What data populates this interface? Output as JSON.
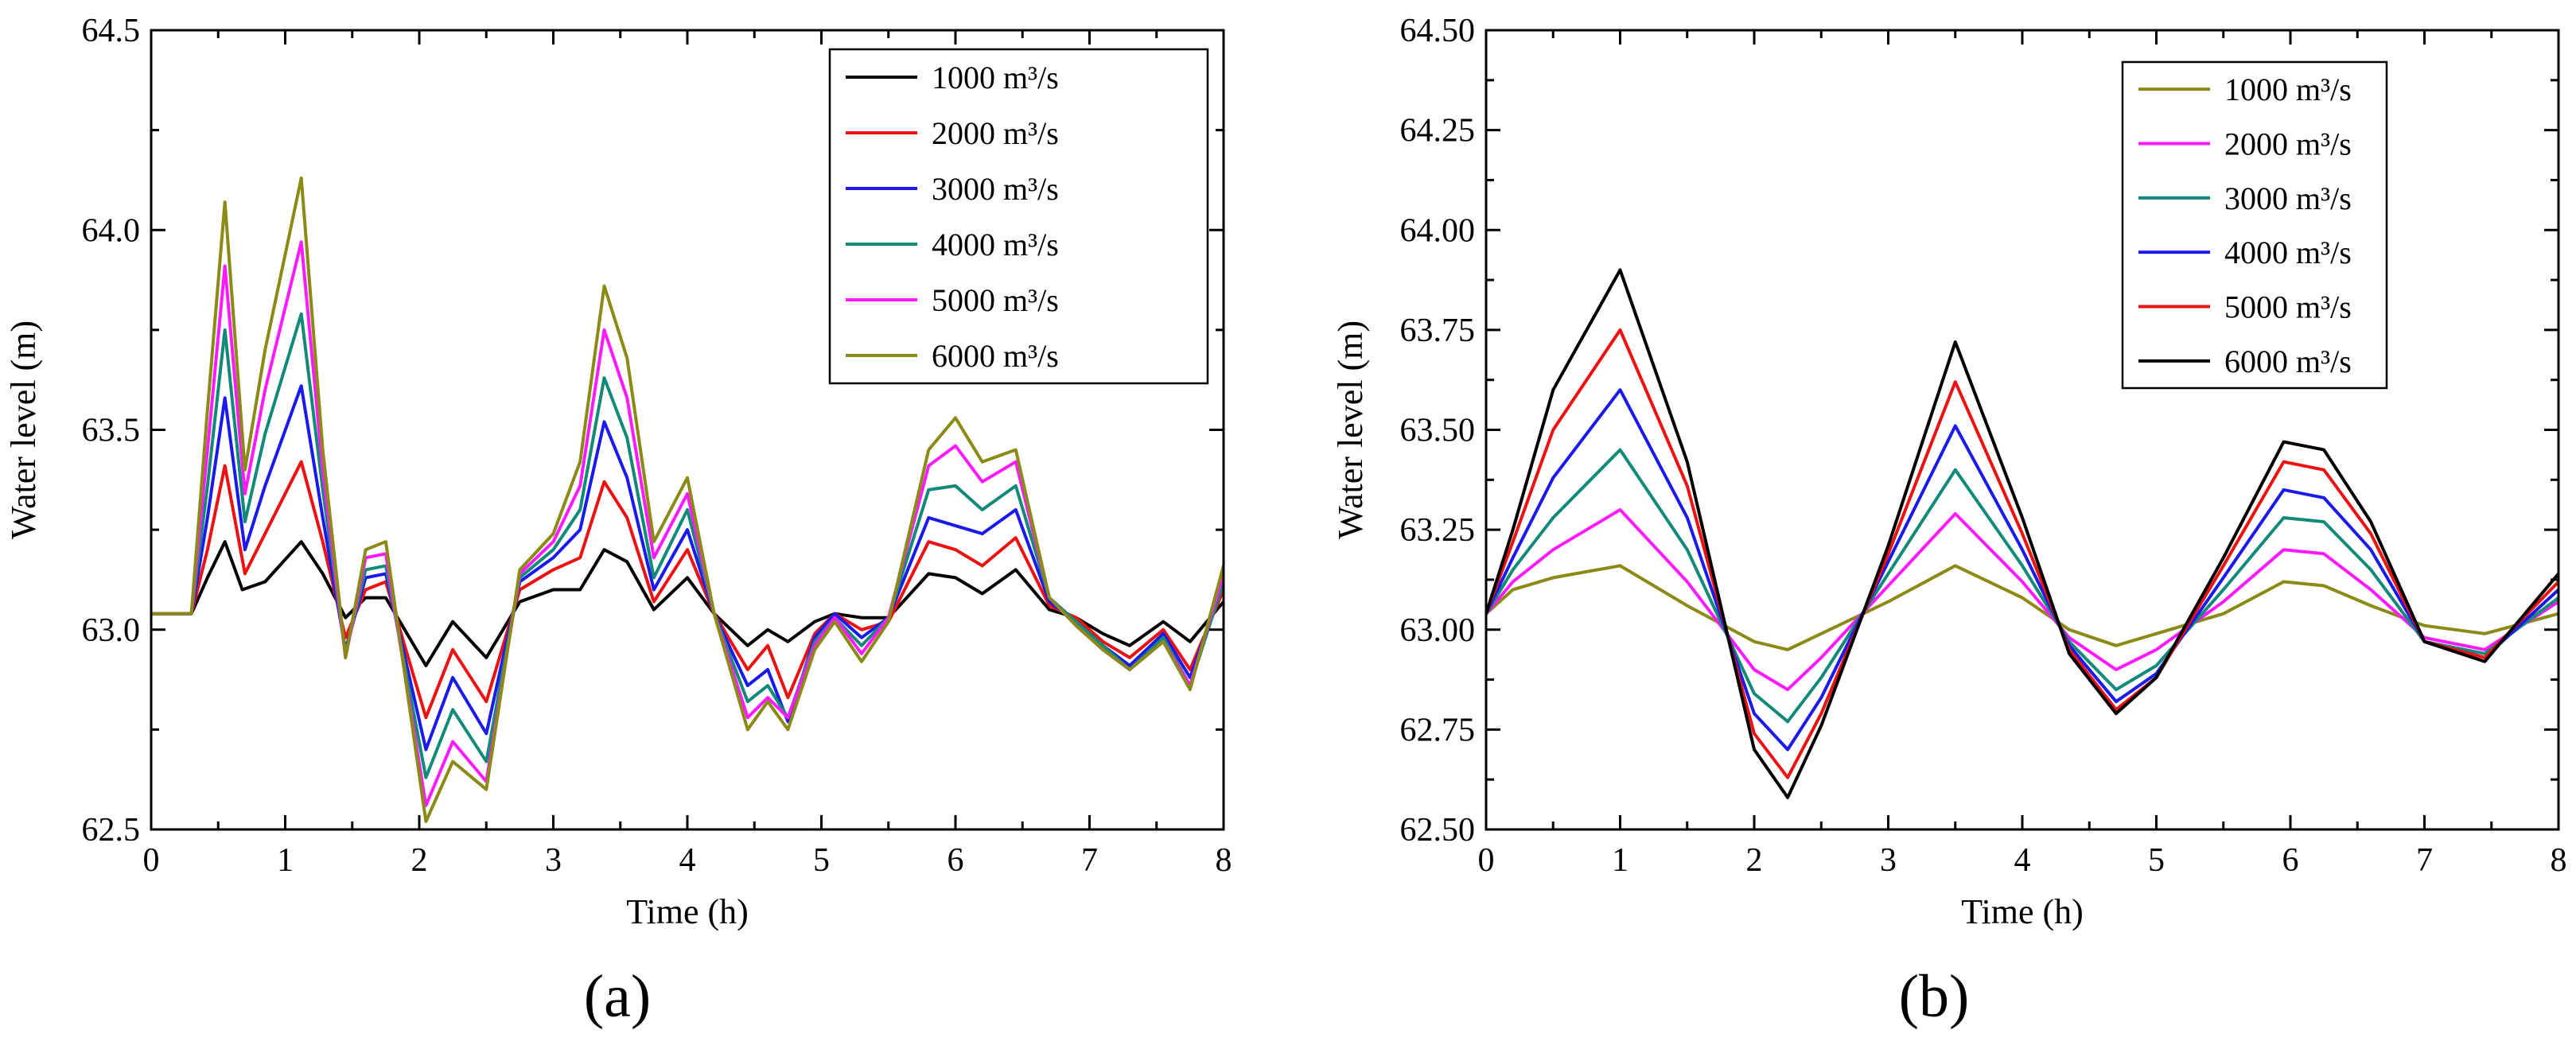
{
  "chart_data": [
    {
      "type": "line",
      "panel_label": "(a)",
      "xlabel": "Time (h)",
      "ylabel": "Water level (m)",
      "xlim": [
        0,
        8
      ],
      "ylim": [
        62.5,
        64.5
      ],
      "xticks": [
        0,
        1,
        2,
        3,
        4,
        5,
        6,
        7,
        8
      ],
      "xtick_labels": [
        "0",
        "1",
        "2",
        "3",
        "4",
        "5",
        "6",
        "7",
        "8"
      ],
      "yticks": [
        62.5,
        63.0,
        63.5,
        64.0,
        64.5
      ],
      "ytick_labels": [
        "62.5",
        "63.0",
        "63.5",
        "64.0",
        "64.5"
      ],
      "legend_position": "top-right",
      "series": [
        {
          "name": "1000 m³/s",
          "color": "#000000",
          "x": [
            0,
            0.3,
            0.42,
            0.55,
            0.68,
            0.85,
            1.12,
            1.28,
            1.45,
            1.6,
            1.75,
            2.05,
            2.25,
            2.5,
            2.75,
            3.0,
            3.2,
            3.38,
            3.55,
            3.75,
            4.0,
            4.2,
            4.45,
            4.6,
            4.75,
            4.95,
            5.1,
            5.3,
            5.5,
            5.8,
            6.0,
            6.2,
            6.45,
            6.7,
            6.9,
            7.1,
            7.3,
            7.55,
            7.75,
            8.0
          ],
          "values": [
            63.04,
            63.04,
            63.13,
            63.22,
            63.1,
            63.12,
            63.22,
            63.14,
            63.03,
            63.08,
            63.08,
            62.91,
            63.02,
            62.93,
            63.07,
            63.1,
            63.1,
            63.2,
            63.17,
            63.05,
            63.13,
            63.04,
            62.96,
            63.0,
            62.97,
            63.02,
            63.04,
            63.03,
            63.03,
            63.14,
            63.13,
            63.09,
            63.15,
            63.05,
            63.03,
            62.99,
            62.96,
            63.02,
            62.97,
            63.07
          ]
        },
        {
          "name": "2000 m³/s",
          "color": "#ee1111",
          "x": [
            0,
            0.3,
            0.42,
            0.55,
            0.7,
            0.85,
            1.12,
            1.28,
            1.45,
            1.6,
            1.75,
            2.05,
            2.25,
            2.5,
            2.75,
            3.0,
            3.2,
            3.38,
            3.55,
            3.75,
            4.0,
            4.2,
            4.45,
            4.6,
            4.75,
            4.95,
            5.1,
            5.3,
            5.5,
            5.8,
            6.0,
            6.2,
            6.45,
            6.7,
            6.9,
            7.1,
            7.3,
            7.55,
            7.75,
            8.0
          ],
          "values": [
            63.04,
            63.04,
            63.2,
            63.41,
            63.14,
            63.24,
            63.42,
            63.22,
            62.98,
            63.1,
            63.12,
            62.78,
            62.95,
            62.82,
            63.1,
            63.15,
            63.18,
            63.37,
            63.28,
            63.07,
            63.2,
            63.04,
            62.9,
            62.96,
            62.83,
            62.99,
            63.04,
            63.0,
            63.02,
            63.22,
            63.2,
            63.16,
            63.23,
            63.06,
            63.03,
            62.97,
            62.93,
            63.0,
            62.9,
            63.1
          ]
        },
        {
          "name": "3000 m³/s",
          "color": "#1a1aee",
          "x": [
            0,
            0.3,
            0.42,
            0.55,
            0.7,
            0.85,
            1.12,
            1.28,
            1.45,
            1.6,
            1.75,
            2.05,
            2.25,
            2.5,
            2.75,
            3.0,
            3.2,
            3.38,
            3.55,
            3.75,
            4.0,
            4.2,
            4.45,
            4.6,
            4.75,
            4.95,
            5.1,
            5.3,
            5.5,
            5.8,
            6.0,
            6.2,
            6.45,
            6.7,
            6.9,
            7.1,
            7.3,
            7.55,
            7.75,
            8.0
          ],
          "values": [
            63.04,
            63.04,
            63.28,
            63.58,
            63.2,
            63.36,
            63.61,
            63.28,
            62.95,
            63.13,
            63.14,
            62.7,
            62.88,
            62.74,
            63.12,
            63.18,
            63.25,
            63.52,
            63.38,
            63.1,
            63.25,
            63.04,
            62.86,
            62.9,
            62.77,
            62.98,
            63.04,
            62.98,
            63.03,
            63.28,
            63.26,
            63.24,
            63.3,
            63.07,
            63.02,
            62.96,
            62.91,
            62.99,
            62.88,
            63.12
          ]
        },
        {
          "name": "4000 m³/s",
          "color": "#128a7a",
          "x": [
            0,
            0.3,
            0.42,
            0.55,
            0.7,
            0.85,
            1.12,
            1.28,
            1.45,
            1.6,
            1.75,
            2.05,
            2.25,
            2.5,
            2.75,
            3.0,
            3.2,
            3.38,
            3.55,
            3.75,
            4.0,
            4.2,
            4.45,
            4.6,
            4.75,
            4.95,
            5.1,
            5.3,
            5.5,
            5.8,
            6.0,
            6.2,
            6.45,
            6.7,
            6.9,
            7.1,
            7.3,
            7.55,
            7.75,
            8.0
          ],
          "values": [
            63.04,
            63.04,
            63.36,
            63.75,
            63.27,
            63.49,
            63.79,
            63.35,
            62.94,
            63.15,
            63.16,
            62.63,
            62.8,
            62.67,
            63.13,
            63.2,
            63.3,
            63.63,
            63.48,
            63.13,
            63.3,
            63.04,
            62.82,
            62.86,
            62.78,
            62.97,
            63.03,
            62.96,
            63.03,
            63.35,
            63.36,
            63.3,
            63.36,
            63.08,
            63.02,
            62.96,
            62.9,
            62.98,
            62.86,
            63.12
          ]
        },
        {
          "name": "5000 m³/s",
          "color": "#ff1aff",
          "x": [
            0,
            0.3,
            0.42,
            0.55,
            0.7,
            0.85,
            1.12,
            1.28,
            1.45,
            1.6,
            1.75,
            2.05,
            2.25,
            2.5,
            2.75,
            3.0,
            3.2,
            3.38,
            3.55,
            3.75,
            4.0,
            4.2,
            4.45,
            4.6,
            4.75,
            4.95,
            5.1,
            5.3,
            5.5,
            5.8,
            6.0,
            6.2,
            6.45,
            6.7,
            6.9,
            7.1,
            7.3,
            7.55,
            7.75,
            8.0
          ],
          "values": [
            63.04,
            63.04,
            63.45,
            63.91,
            63.34,
            63.6,
            63.97,
            63.4,
            62.93,
            63.18,
            63.19,
            62.56,
            62.72,
            62.62,
            63.14,
            63.22,
            63.36,
            63.75,
            63.58,
            63.18,
            63.34,
            63.04,
            62.78,
            62.83,
            62.78,
            62.96,
            63.03,
            62.94,
            63.03,
            63.41,
            63.46,
            63.37,
            63.42,
            63.08,
            63.01,
            62.95,
            62.9,
            62.97,
            62.86,
            63.14
          ]
        },
        {
          "name": "6000 m³/s",
          "color": "#8a8a14",
          "x": [
            0,
            0.3,
            0.42,
            0.55,
            0.7,
            0.85,
            1.12,
            1.28,
            1.45,
            1.6,
            1.75,
            2.05,
            2.25,
            2.5,
            2.75,
            3.0,
            3.2,
            3.38,
            3.55,
            3.75,
            4.0,
            4.2,
            4.45,
            4.6,
            4.75,
            4.95,
            5.1,
            5.3,
            5.5,
            5.8,
            6.0,
            6.2,
            6.45,
            6.7,
            6.9,
            7.1,
            7.3,
            7.55,
            7.75,
            8.0
          ],
          "values": [
            63.04,
            63.04,
            63.55,
            64.07,
            63.4,
            63.7,
            64.13,
            63.45,
            62.93,
            63.2,
            63.22,
            62.52,
            62.67,
            62.6,
            63.15,
            63.24,
            63.42,
            63.86,
            63.68,
            63.22,
            63.38,
            63.04,
            62.75,
            62.82,
            62.75,
            62.95,
            63.02,
            62.92,
            63.02,
            63.45,
            63.53,
            63.42,
            63.45,
            63.08,
            63.01,
            62.95,
            62.9,
            62.97,
            62.85,
            63.16
          ]
        }
      ]
    },
    {
      "type": "line",
      "panel_label": "(b)",
      "xlabel": "Time (h)",
      "ylabel": "Water level (m)",
      "xlim": [
        0,
        8
      ],
      "ylim": [
        62.5,
        64.5
      ],
      "xticks": [
        0,
        1,
        2,
        3,
        4,
        5,
        6,
        7,
        8
      ],
      "xtick_labels": [
        "0",
        "1",
        "2",
        "3",
        "4",
        "5",
        "6",
        "7",
        "8"
      ],
      "yticks": [
        62.5,
        62.75,
        63.0,
        63.25,
        63.5,
        63.75,
        64.0,
        64.25,
        64.5
      ],
      "ytick_labels": [
        "62.50",
        "62.75",
        "63.00",
        "63.25",
        "63.50",
        "63.75",
        "64.00",
        "64.25",
        "64.50"
      ],
      "legend_position": "top-right",
      "series": [
        {
          "name": "1000 m³/s",
          "color": "#8a8a14",
          "x": [
            0,
            0.2,
            0.5,
            1.0,
            1.5,
            2.0,
            2.25,
            2.5,
            3.0,
            3.5,
            4.0,
            4.35,
            4.7,
            5.0,
            5.5,
            5.95,
            6.25,
            6.6,
            7.0,
            7.45,
            8.0
          ],
          "values": [
            63.04,
            63.1,
            63.13,
            63.16,
            63.06,
            62.97,
            62.95,
            62.99,
            63.07,
            63.16,
            63.08,
            63.0,
            62.96,
            62.99,
            63.04,
            63.12,
            63.11,
            63.06,
            63.01,
            62.99,
            63.04
          ]
        },
        {
          "name": "2000 m³/s",
          "color": "#ff1aff",
          "x": [
            0,
            0.2,
            0.5,
            1.0,
            1.5,
            2.0,
            2.25,
            2.5,
            3.0,
            3.5,
            4.0,
            4.35,
            4.7,
            5.0,
            5.5,
            5.95,
            6.25,
            6.6,
            7.0,
            7.45,
            8.0
          ],
          "values": [
            63.04,
            63.12,
            63.2,
            63.3,
            63.12,
            62.9,
            62.85,
            62.93,
            63.11,
            63.29,
            63.12,
            62.98,
            62.9,
            62.95,
            63.07,
            63.2,
            63.19,
            63.1,
            62.98,
            62.95,
            63.07
          ]
        },
        {
          "name": "3000 m³/s",
          "color": "#128a7a",
          "x": [
            0,
            0.2,
            0.5,
            1.0,
            1.5,
            2.0,
            2.25,
            2.5,
            3.0,
            3.5,
            4.0,
            4.35,
            4.7,
            5.0,
            5.5,
            5.95,
            6.25,
            6.6,
            7.0,
            7.45,
            8.0
          ],
          "values": [
            63.04,
            63.15,
            63.28,
            63.45,
            63.2,
            62.84,
            62.77,
            62.88,
            63.14,
            63.4,
            63.16,
            62.97,
            62.85,
            62.91,
            63.1,
            63.28,
            63.27,
            63.15,
            62.97,
            62.94,
            63.08
          ]
        },
        {
          "name": "4000 m³/s",
          "color": "#1a1aee",
          "x": [
            0,
            0.2,
            0.5,
            1.0,
            1.5,
            2.0,
            2.25,
            2.5,
            3.0,
            3.5,
            4.0,
            4.35,
            4.7,
            5.0,
            5.5,
            5.95,
            6.25,
            6.6,
            7.0,
            7.45,
            8.0
          ],
          "values": [
            63.04,
            63.18,
            63.38,
            63.6,
            63.28,
            62.79,
            62.7,
            62.83,
            63.17,
            63.51,
            63.2,
            62.96,
            62.82,
            62.89,
            63.13,
            63.35,
            63.33,
            63.2,
            62.97,
            62.93,
            63.1
          ]
        },
        {
          "name": "5000 m³/s",
          "color": "#ee1111",
          "x": [
            0,
            0.2,
            0.5,
            1.0,
            1.5,
            2.0,
            2.25,
            2.5,
            3.0,
            3.5,
            4.0,
            4.35,
            4.7,
            5.0,
            5.5,
            5.95,
            6.25,
            6.6,
            7.0,
            7.45,
            8.0
          ],
          "values": [
            63.04,
            63.22,
            63.5,
            63.75,
            63.36,
            62.74,
            62.63,
            62.79,
            63.19,
            63.62,
            63.24,
            62.95,
            62.8,
            62.88,
            63.16,
            63.42,
            63.4,
            63.24,
            62.97,
            62.93,
            63.12
          ]
        },
        {
          "name": "6000 m³/s",
          "color": "#000000",
          "x": [
            0,
            0.2,
            0.5,
            1.0,
            1.5,
            2.0,
            2.25,
            2.5,
            3.0,
            3.5,
            4.0,
            4.35,
            4.7,
            5.0,
            5.5,
            5.95,
            6.25,
            6.6,
            7.0,
            7.45,
            8.0
          ],
          "values": [
            63.04,
            63.25,
            63.6,
            63.9,
            63.42,
            62.7,
            62.58,
            62.76,
            63.21,
            63.72,
            63.28,
            62.94,
            62.79,
            62.88,
            63.18,
            63.47,
            63.45,
            63.27,
            62.97,
            62.92,
            63.14
          ]
        }
      ]
    }
  ]
}
